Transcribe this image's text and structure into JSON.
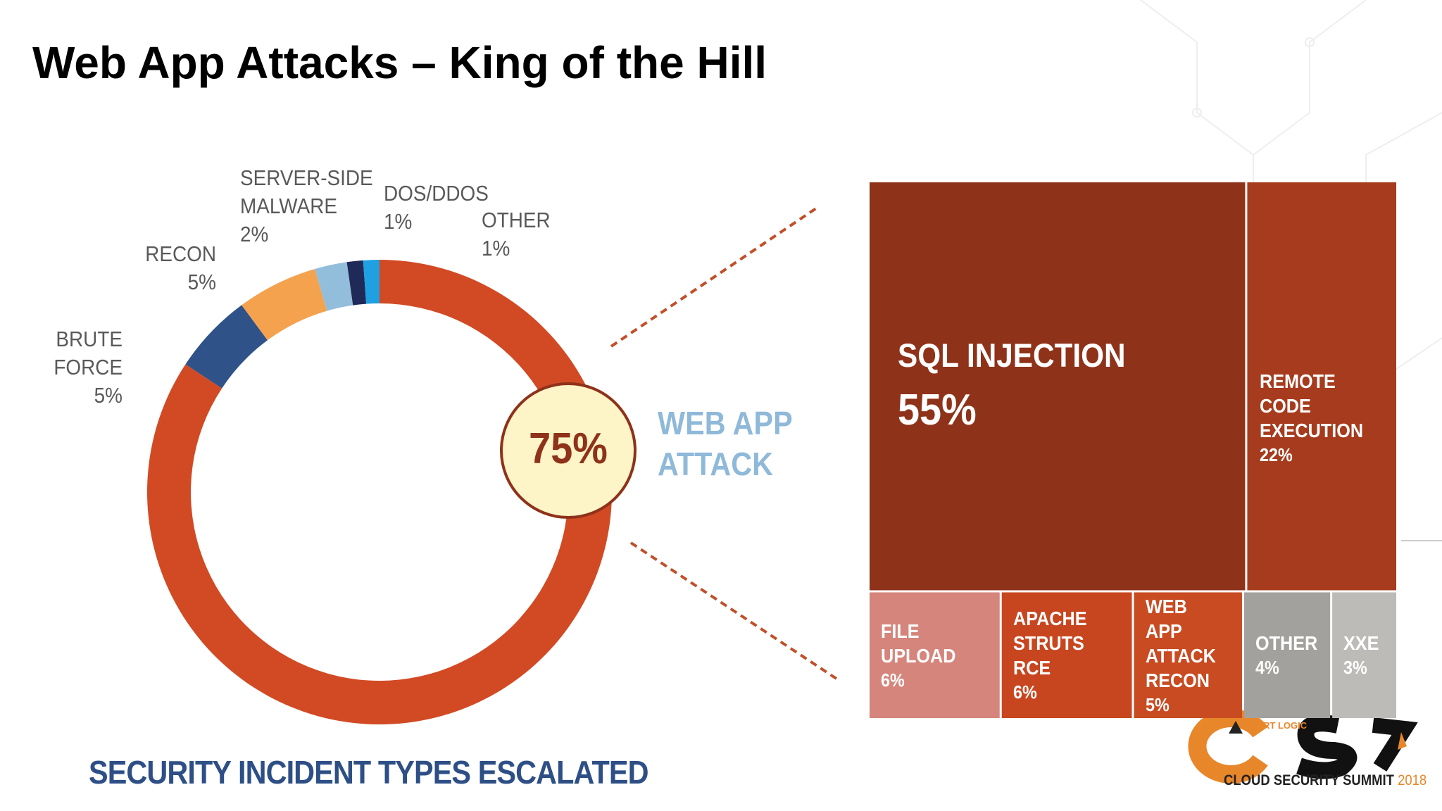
{
  "header": {
    "title": "Web App Attacks – King of the Hill"
  },
  "chart_data": [
    {
      "type": "pie",
      "donut": true,
      "title": "SECURITY INCIDENT TYPES ESCALATED",
      "categories": [
        "WEB APP ATTACK",
        "BRUTE FORCE",
        "RECON",
        "SERVER-SIDE MALWARE",
        "DOS/DDOS",
        "OTHER"
      ],
      "values": [
        75,
        5,
        5,
        2,
        1,
        1
      ],
      "value_labels": [
        "75%",
        "5%",
        "5%",
        "2%",
        "1%",
        "1%"
      ],
      "colors": [
        "#d14a24",
        "#2f5289",
        "#f4a24e",
        "#93bedb",
        "#1f2a58",
        "#1ea0e2"
      ]
    },
    {
      "type": "treemap",
      "categories": [
        "SQL INJECTION",
        "REMOTE CODE EXECUTION",
        "FILE UPLOAD",
        "APACHE STRUTS RCE",
        "WEB APP ATTACK RECON",
        "OTHER",
        "XXE"
      ],
      "values": [
        55,
        22,
        6,
        6,
        5,
        4,
        3
      ],
      "value_labels": [
        "55%",
        "22%",
        "6%",
        "6%",
        "5%",
        "4%",
        "3%"
      ],
      "colors": [
        "#8f321a",
        "#a63b1d",
        "#d5857b",
        "#c8461f",
        "#c84b22",
        "#a3a19d",
        "#bdbbb7"
      ]
    }
  ],
  "footer": {
    "brand": "ALERT LOGIC",
    "event": "CLOUD SECURITY SUMMIT",
    "year": "2018"
  }
}
